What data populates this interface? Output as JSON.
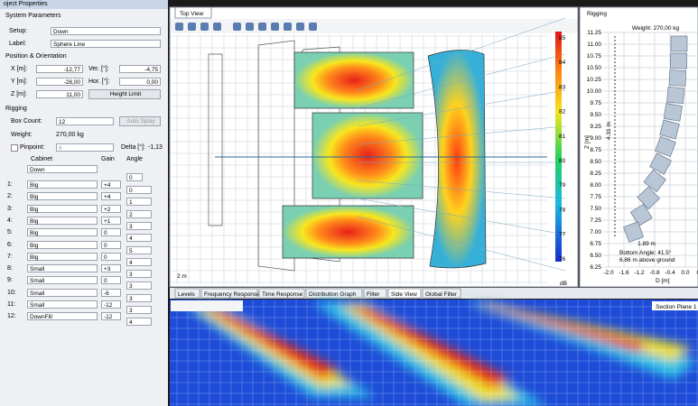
{
  "window_tabs": {
    "properties": "oject Properties",
    "top_view": "Top View",
    "rigging": "Rigging"
  },
  "properties": {
    "system_parameters": "System Parameters",
    "setup_label": "Setup:",
    "setup_value": "Down",
    "label_label": "Label:",
    "label_value": "Sphere Line",
    "position_header": "Position & Orientation",
    "fields": [
      {
        "label": "X [m]:",
        "value": "-12,77",
        "label2": "Ver. [°]:",
        "value2": "-4,75"
      },
      {
        "label": "Y [m]:",
        "value": "-28,00",
        "label2": "Hor. [°]:",
        "value2": "0,00"
      },
      {
        "label": "Z [m]:",
        "value": "11,00",
        "button": "Height Limit"
      }
    ],
    "rigging_header": "Rigging",
    "box_count_label": "Box Count:",
    "box_count": "12",
    "auto_splay": "Auto Splay",
    "weight_label": "Weight:",
    "weight": "270,00 kg",
    "pinpoint_label": "Pinpoint:",
    "pinpoint": "6",
    "delta_label": "Delta [°]:",
    "delta": "-1,13",
    "columns": [
      "Cabinet",
      "Gain",
      "Angle"
    ],
    "top_cabinet": "Down",
    "top_angle": "0",
    "rows": [
      [
        "1:",
        "Big",
        "+4",
        "0"
      ],
      [
        "2:",
        "Big",
        "+4",
        "1"
      ],
      [
        "3:",
        "Big",
        "+2",
        "2"
      ],
      [
        "4:",
        "Big",
        "+1",
        "3"
      ],
      [
        "5:",
        "Big",
        "0",
        "4"
      ],
      [
        "6:",
        "Big",
        "0",
        "5"
      ],
      [
        "7:",
        "Big",
        "0",
        "4"
      ],
      [
        "8:",
        "Small",
        "+3",
        "3"
      ],
      [
        "9:",
        "Small",
        "0",
        "3"
      ],
      [
        "10:",
        "Small",
        "-6",
        "3"
      ],
      [
        "11:",
        "Small",
        "-12",
        "3"
      ],
      [
        "12:",
        "DownFill",
        "-12",
        "4"
      ]
    ]
  },
  "top_view": {
    "colorbar_ticks": [
      "85",
      "84",
      "83",
      "82",
      "81",
      "80",
      "79",
      "78",
      "77",
      "76"
    ],
    "colorbar_unit": "dB",
    "scale": "2 m"
  },
  "rigging": {
    "weight": "Weight: 270,00 kg",
    "y_label": "Z [m]",
    "yticks": [
      "11.25",
      "11.00",
      "10.75",
      "10.50",
      "10.25",
      "10.00",
      "9.75",
      "9.50",
      "9.25",
      "9.00",
      "8.75",
      "8.50",
      "8.25",
      "8.00",
      "7.75",
      "7.50",
      "7.25",
      "7.00",
      "6.75",
      "6.50",
      "6.25"
    ],
    "x_label": "D [m]",
    "xticks": [
      "-2.0",
      "-1.6",
      "-1.2",
      "-0.8",
      "-0.4",
      "0.0",
      "0.4"
    ],
    "height": "4.31 m",
    "length": "1.89 m",
    "bottom_angle": "Bottom Angle: 41.5°",
    "above_ground": "6.86 m above ground"
  },
  "bottom_tabs": [
    "Levels",
    "Frequency Response",
    "Time Response",
    "Distribution Graph",
    "Filter",
    "Side View",
    "Global Filter"
  ],
  "side_view": {
    "section": "Section Plane 1"
  }
}
